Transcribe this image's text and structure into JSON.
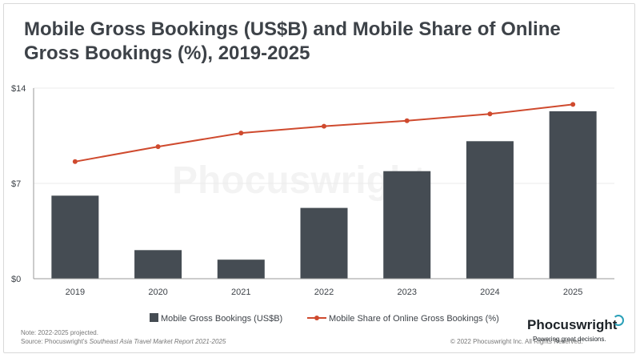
{
  "title_line1": "Mobile Gross Bookings (US$B) and Mobile Share of Online",
  "title_line2": "Gross Bookings (%), 2019-2025",
  "watermark": "Phocuswright",
  "footer": {
    "note": "Note: 2022-2025 projected.",
    "source_prefix": "Source: Phocuswright's ",
    "source_italic": "Southeast Asia Travel Market Report 2021-2025",
    "copyright": "© 2022 Phocuswright Inc. All Rights Reserved.",
    "logo": "Phocuswright",
    "tagline": "Powering great decisions."
  },
  "colors": {
    "bar": "#454c53",
    "line": "#cf4a2e",
    "axis": "#9a9a9a",
    "grid": "#ebebeb",
    "text": "#3d4248"
  },
  "chart_data": {
    "type": "bar",
    "categories": [
      "2019",
      "2020",
      "2021",
      "2022",
      "2023",
      "2024",
      "2025"
    ],
    "ylim": [
      0,
      14
    ],
    "yticks": [
      {
        "value": 0,
        "label": "$0"
      },
      {
        "value": 7,
        "label": "$7"
      },
      {
        "value": 14,
        "label": "$14"
      }
    ],
    "grid": "horizontal",
    "legend_position": "bottom",
    "series": [
      {
        "name": "Mobile Gross Bookings (US$B)",
        "type": "bar",
        "values": [
          6.1,
          2.1,
          1.4,
          5.2,
          7.9,
          10.1,
          12.3
        ]
      },
      {
        "name": "Mobile Share of Online Gross Bookings (%)",
        "type": "line",
        "values": [
          8.6,
          9.7,
          10.7,
          11.2,
          11.6,
          12.1,
          12.8
        ]
      }
    ]
  }
}
